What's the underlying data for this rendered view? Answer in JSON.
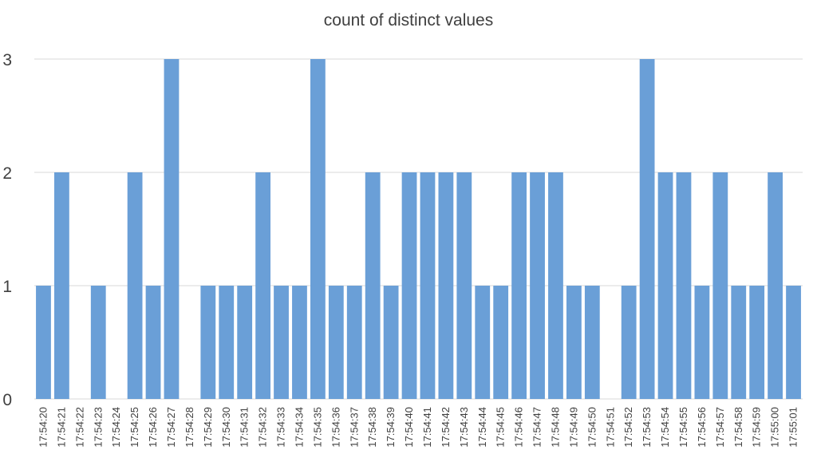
{
  "chart_data": {
    "type": "bar",
    "title": "count of distinct values",
    "xlabel": "",
    "ylabel": "",
    "ylim": [
      0,
      3
    ],
    "yticks": [
      0,
      1,
      2,
      3
    ],
    "grid": true,
    "bar_color": "#6a9fd7",
    "categories": [
      "17:54:20",
      "17:54:21",
      "17:54:22",
      "17:54:23",
      "17:54:24",
      "17:54:25",
      "17:54:26",
      "17:54:27",
      "17:54:28",
      "17:54:29",
      "17:54:30",
      "17:54:31",
      "17:54:32",
      "17:54:33",
      "17:54:34",
      "17:54:35",
      "17:54:36",
      "17:54:37",
      "17:54:38",
      "17:54:39",
      "17:54:40",
      "17:54:41",
      "17:54:42",
      "17:54:43",
      "17:54:44",
      "17:54:45",
      "17:54:46",
      "17:54:47",
      "17:54:48",
      "17:54:49",
      "17:54:50",
      "17:54:51",
      "17:54:52",
      "17:54:53",
      "17:54:54",
      "17:54:55",
      "17:54:56",
      "17:54:57",
      "17:54:58",
      "17:54:59",
      "17:55:00",
      "17:55:01"
    ],
    "values": [
      1,
      2,
      0,
      1,
      0,
      2,
      1,
      3,
      0,
      1,
      1,
      1,
      2,
      1,
      1,
      3,
      1,
      1,
      2,
      1,
      2,
      2,
      2,
      2,
      1,
      1,
      2,
      2,
      2,
      1,
      1,
      0,
      1,
      3,
      2,
      2,
      1,
      2,
      1,
      1,
      2,
      1
    ]
  }
}
